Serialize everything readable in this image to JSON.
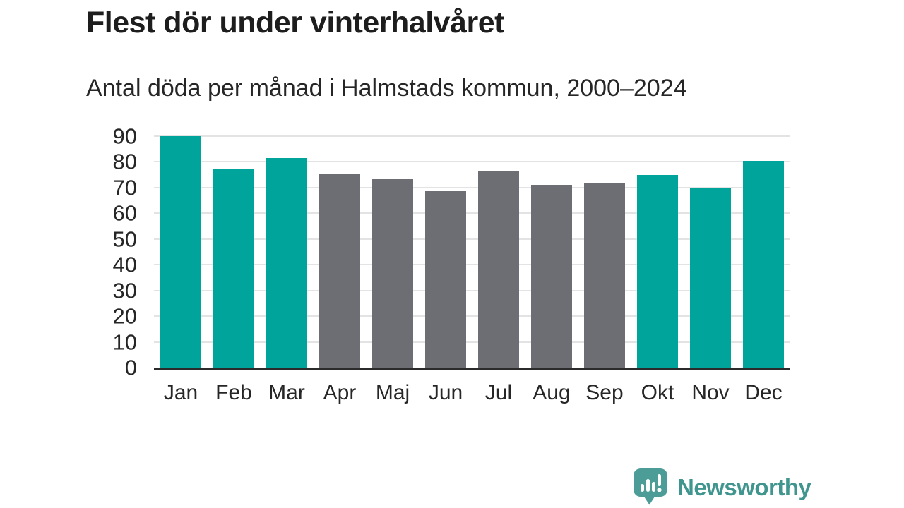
{
  "header": {
    "title": "Flest dör under vinterhalvåret",
    "subtitle": "Antal döda per månad i Halmstads kommun, 2000–2024"
  },
  "chart_data": {
    "type": "bar",
    "title": "Flest dör under vinterhalvåret",
    "subtitle": "Antal döda per månad i Halmstads kommun, 2000–2024",
    "categories": [
      "Jan",
      "Feb",
      "Mar",
      "Apr",
      "Maj",
      "Jun",
      "Jul",
      "Aug",
      "Sep",
      "Okt",
      "Nov",
      "Dec"
    ],
    "values": [
      90,
      77,
      81.5,
      75.5,
      73.5,
      68.5,
      76.5,
      71,
      71.5,
      75,
      70,
      80.5
    ],
    "groups": [
      "winter",
      "winter",
      "winter",
      "summer",
      "summer",
      "summer",
      "summer",
      "summer",
      "summer",
      "winter",
      "winter",
      "winter"
    ],
    "colors": {
      "winter": "#00a49a",
      "summer": "#6d6d74"
    },
    "xlabel": "",
    "ylabel": "",
    "ylim": [
      0,
      90
    ],
    "yticks": [
      0,
      10,
      20,
      30,
      40,
      50,
      60,
      70,
      80,
      90
    ],
    "grid": "horizontal",
    "legend": "none"
  },
  "footer": {
    "brand": "Newsworthy"
  },
  "theme": {
    "background": "#ffffff",
    "title_color": "#1d1d1d",
    "text_color": "#262626",
    "grid_color": "#e3e3e3",
    "axis_color": "#2b2b2b",
    "bar_winter": "#00a49a",
    "bar_summer": "#6d6d74",
    "logo_color": "#40968f",
    "logo_icon_color": "#4c9d97"
  }
}
